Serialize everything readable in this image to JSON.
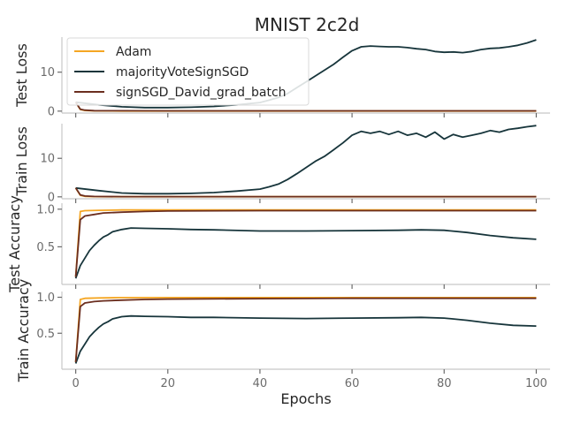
{
  "figure": {
    "title": "MNIST 2c2d",
    "xlabel": "Epochs"
  },
  "legend": {
    "placement": "top-left",
    "entries": [
      {
        "name": "Adam",
        "color": "#f5a623"
      },
      {
        "name": "majorityVoteSignSGD",
        "color": "#17353b"
      },
      {
        "name": "signSGD_David_grad_batch",
        "color": "#6b2e1f"
      }
    ]
  },
  "chart_data": [
    {
      "type": "line",
      "ylabel": "Test Loss",
      "xlim": [
        -3,
        103
      ],
      "ylim": [
        -0.5,
        19
      ],
      "yticks": [
        0,
        10
      ],
      "xticks": [
        0,
        20,
        40,
        60,
        80,
        100
      ],
      "series": [
        {
          "name": "Adam",
          "color": "#f5a623",
          "x": [
            0,
            1,
            2,
            4,
            10,
            20,
            40,
            60,
            80,
            100
          ],
          "y": [
            2.3,
            0.4,
            0.15,
            0.06,
            0.03,
            0.03,
            0.03,
            0.03,
            0.03,
            0.03
          ]
        },
        {
          "name": "majorityVoteSignSGD",
          "color": "#17353b",
          "x": [
            0,
            5,
            10,
            15,
            20,
            25,
            30,
            35,
            40,
            42,
            44,
            46,
            48,
            50,
            52,
            54,
            56,
            58,
            60,
            62,
            64,
            66,
            68,
            70,
            72,
            74,
            76,
            78,
            80,
            82,
            84,
            86,
            88,
            90,
            92,
            94,
            96,
            98,
            100
          ],
          "y": [
            2.3,
            1.6,
            1.1,
            0.9,
            0.9,
            1.0,
            1.2,
            1.6,
            2.2,
            2.8,
            3.5,
            4.5,
            6.0,
            7.5,
            9.0,
            10.5,
            12.0,
            13.8,
            15.5,
            16.5,
            16.7,
            16.6,
            16.5,
            16.5,
            16.3,
            16.0,
            15.8,
            15.3,
            15.1,
            15.2,
            15.0,
            15.3,
            15.8,
            16.1,
            16.2,
            16.5,
            16.9,
            17.5,
            18.3
          ]
        },
        {
          "name": "signSGD_David_grad_batch",
          "color": "#6b2e1f",
          "x": [
            0,
            1,
            2,
            4,
            10,
            20,
            40,
            60,
            80,
            100
          ],
          "y": [
            2.3,
            0.5,
            0.25,
            0.12,
            0.08,
            0.07,
            0.07,
            0.07,
            0.07,
            0.07
          ]
        }
      ]
    },
    {
      "type": "line",
      "ylabel": "Train Loss",
      "xlim": [
        -3,
        103
      ],
      "ylim": [
        -0.5,
        19
      ],
      "yticks": [
        0,
        10
      ],
      "xticks": [
        0,
        20,
        40,
        60,
        80,
        100
      ],
      "series": [
        {
          "name": "Adam",
          "color": "#f5a623",
          "x": [
            0,
            1,
            2,
            4,
            10,
            20,
            40,
            60,
            80,
            100
          ],
          "y": [
            2.3,
            0.4,
            0.12,
            0.05,
            0.02,
            0.02,
            0.02,
            0.02,
            0.02,
            0.02
          ]
        },
        {
          "name": "majorityVoteSignSGD",
          "color": "#17353b",
          "x": [
            0,
            5,
            10,
            15,
            20,
            25,
            30,
            35,
            40,
            42,
            44,
            46,
            48,
            50,
            52,
            54,
            56,
            58,
            60,
            62,
            64,
            66,
            68,
            70,
            72,
            74,
            76,
            78,
            80,
            82,
            84,
            86,
            88,
            90,
            92,
            94,
            96,
            98,
            100
          ],
          "y": [
            2.3,
            1.6,
            1.0,
            0.8,
            0.8,
            0.9,
            1.1,
            1.5,
            2.0,
            2.6,
            3.3,
            4.5,
            6.0,
            7.6,
            9.2,
            10.5,
            12.2,
            14.0,
            16.0,
            17.0,
            16.5,
            17.0,
            16.2,
            17.0,
            16.0,
            16.5,
            15.5,
            16.8,
            15.0,
            16.2,
            15.5,
            16.0,
            16.5,
            17.2,
            16.8,
            17.5,
            17.8,
            18.2,
            18.5
          ]
        },
        {
          "name": "signSGD_David_grad_batch",
          "color": "#6b2e1f",
          "x": [
            0,
            1,
            2,
            4,
            10,
            20,
            40,
            60,
            80,
            100
          ],
          "y": [
            2.3,
            0.5,
            0.22,
            0.1,
            0.06,
            0.05,
            0.05,
            0.05,
            0.05,
            0.05
          ]
        }
      ]
    },
    {
      "type": "line",
      "ylabel": "Test Accuracy",
      "xlim": [
        -3,
        103
      ],
      "ylim": [
        0.0,
        1.08
      ],
      "yticks": [
        0.5,
        1.0
      ],
      "xticks": [
        0,
        20,
        40,
        60,
        80,
        100
      ],
      "series": [
        {
          "name": "Adam",
          "color": "#f5a623",
          "x": [
            0,
            1,
            2,
            5,
            10,
            20,
            40,
            60,
            80,
            100
          ],
          "y": [
            0.1,
            0.97,
            0.98,
            0.985,
            0.99,
            0.99,
            0.99,
            0.99,
            0.99,
            0.99
          ]
        },
        {
          "name": "majorityVoteSignSGD",
          "color": "#17353b",
          "x": [
            0,
            1,
            2,
            3,
            4,
            5,
            6,
            7,
            8,
            10,
            12,
            15,
            20,
            25,
            30,
            40,
            50,
            60,
            70,
            75,
            80,
            85,
            90,
            95,
            100
          ],
          "y": [
            0.08,
            0.25,
            0.35,
            0.45,
            0.52,
            0.58,
            0.63,
            0.66,
            0.7,
            0.73,
            0.75,
            0.745,
            0.74,
            0.73,
            0.725,
            0.71,
            0.71,
            0.715,
            0.72,
            0.725,
            0.72,
            0.69,
            0.65,
            0.62,
            0.6
          ]
        },
        {
          "name": "signSGD_David_grad_batch",
          "color": "#6b2e1f",
          "x": [
            0,
            1,
            2,
            4,
            6,
            10,
            15,
            20,
            40,
            60,
            80,
            100
          ],
          "y": [
            0.1,
            0.86,
            0.91,
            0.93,
            0.95,
            0.96,
            0.97,
            0.975,
            0.98,
            0.98,
            0.98,
            0.98
          ]
        }
      ]
    },
    {
      "type": "line",
      "ylabel": "Train Accuracy",
      "xlim": [
        -3,
        103
      ],
      "ylim": [
        0.0,
        1.08
      ],
      "yticks": [
        0.5,
        1.0
      ],
      "xticks": [
        0,
        20,
        40,
        60,
        80,
        100
      ],
      "series": [
        {
          "name": "Adam",
          "color": "#f5a623",
          "x": [
            0,
            1,
            2,
            5,
            10,
            20,
            40,
            60,
            80,
            100
          ],
          "y": [
            0.1,
            0.97,
            0.985,
            0.99,
            0.995,
            0.995,
            0.995,
            0.995,
            0.995,
            0.995
          ]
        },
        {
          "name": "majorityVoteSignSGD",
          "color": "#17353b",
          "x": [
            0,
            1,
            2,
            3,
            4,
            5,
            6,
            7,
            8,
            10,
            12,
            15,
            20,
            25,
            30,
            40,
            50,
            60,
            70,
            75,
            80,
            85,
            90,
            95,
            100
          ],
          "y": [
            0.08,
            0.25,
            0.35,
            0.45,
            0.52,
            0.58,
            0.63,
            0.66,
            0.7,
            0.73,
            0.74,
            0.735,
            0.73,
            0.72,
            0.72,
            0.71,
            0.705,
            0.71,
            0.715,
            0.72,
            0.71,
            0.68,
            0.64,
            0.61,
            0.6
          ]
        },
        {
          "name": "signSGD_David_grad_batch",
          "color": "#6b2e1f",
          "x": [
            0,
            1,
            2,
            4,
            6,
            10,
            15,
            20,
            40,
            60,
            80,
            100
          ],
          "y": [
            0.1,
            0.87,
            0.92,
            0.94,
            0.95,
            0.96,
            0.97,
            0.975,
            0.98,
            0.985,
            0.985,
            0.985
          ]
        }
      ]
    }
  ]
}
